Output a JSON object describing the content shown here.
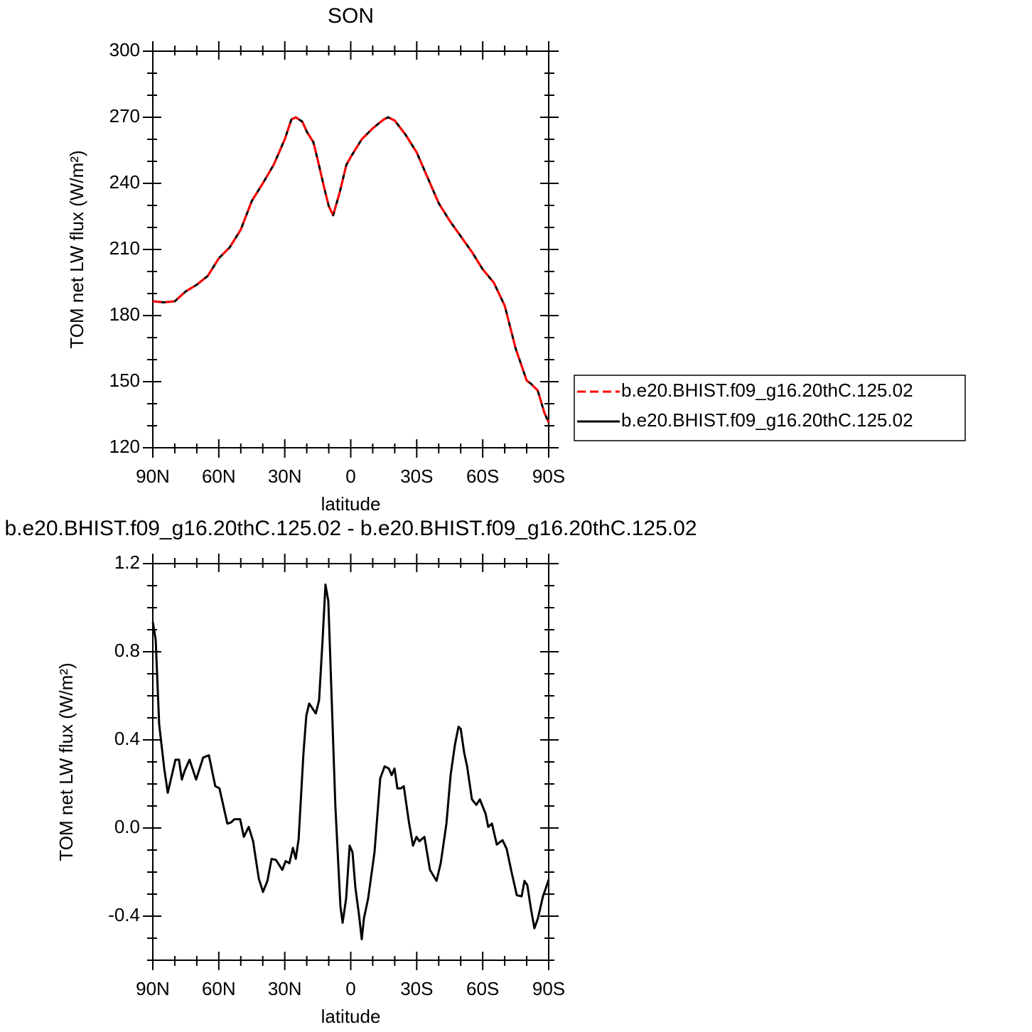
{
  "chart_data": [
    {
      "type": "line",
      "title": "SON",
      "xlabel": "latitude",
      "ylabel": "TOM net LW flux (W/m²)",
      "x": [
        90,
        85,
        80,
        75,
        70,
        65,
        60,
        55,
        50,
        45,
        40,
        35,
        30,
        27,
        25,
        22,
        20,
        17,
        15,
        12,
        10,
        8,
        5,
        2,
        0,
        -5,
        -10,
        -15,
        -17,
        -20,
        -25,
        -30,
        -35,
        -40,
        -45,
        -50,
        -55,
        -60,
        -65,
        -70,
        -75,
        -80,
        -82,
        -85,
        -88,
        -90
      ],
      "series": [
        {
          "name": "b.e20.BHIST.f09_g16.20thC.125.02",
          "color": "#ff0000",
          "dashed": true,
          "values": [
            186.5,
            186,
            186.5,
            191,
            194,
            198,
            206,
            211,
            219,
            232,
            240,
            248.5,
            260,
            269,
            270,
            268,
            263.5,
            258.7,
            250.6,
            237.7,
            229.7,
            225.5,
            236,
            248.4,
            252,
            260,
            265,
            269,
            270,
            268.5,
            262,
            254,
            242.5,
            231,
            223,
            216,
            209,
            201,
            195,
            184.5,
            165,
            150.5,
            149,
            146,
            136,
            131.5
          ]
        },
        {
          "name": "b.e20.BHIST.f09_g16.20thC.125.02",
          "color": "#000000",
          "dashed": false,
          "values": [
            186.5,
            186,
            186.5,
            191,
            194,
            198,
            206,
            211,
            219,
            232,
            240,
            248.5,
            260,
            269,
            270,
            268,
            263.5,
            258.7,
            250.6,
            237.7,
            229.7,
            225.5,
            236,
            248.4,
            252,
            260,
            265,
            269,
            270,
            268.5,
            262,
            254,
            242.5,
            231,
            223,
            216,
            209,
            201,
            195,
            184.5,
            165,
            150.5,
            149,
            146,
            136,
            131.5
          ]
        }
      ],
      "xlim": [
        90,
        -90
      ],
      "xticks": [
        {
          "value": 90,
          "label": "90N"
        },
        {
          "value": 60,
          "label": "60N"
        },
        {
          "value": 30,
          "label": "30N"
        },
        0,
        {
          "value": -30,
          "label": "30S"
        },
        {
          "value": -60,
          "label": "60S"
        },
        {
          "value": -90,
          "label": "90S"
        }
      ],
      "ylim": [
        120,
        300
      ],
      "yticks": [
        120,
        150,
        180,
        210,
        240,
        270,
        300
      ],
      "legend": "right"
    },
    {
      "type": "line",
      "title": "b.e20.BHIST.f09_g16.20thC.125.02 - b.e20.BHIST.f09_g16.20thC.125.02",
      "xlabel": "latitude",
      "ylabel": "TOM net LW flux (W/m²)",
      "x": [
        90,
        88.7,
        87.1,
        84.8,
        83.2,
        79.7,
        78.1,
        76.8,
        75.5,
        73.3,
        70.3,
        67.1,
        64.5,
        61.6,
        59.7,
        56.1,
        54.5,
        52.9,
        50.3,
        48.6,
        46.4,
        44.4,
        41.8,
        39.9,
        37.9,
        36.0,
        34.0,
        31.1,
        29.6,
        27.9,
        26.3,
        25.0,
        23.7,
        21.5,
        20.2,
        18.9,
        15.9,
        14.4,
        12.8,
        11.5,
        10.2,
        8.6,
        7.0,
        4.7,
        3.7,
        2.1,
        0.5,
        -0.8,
        -2.1,
        -3.7,
        -5.0,
        -6.0,
        -7.9,
        -10.8,
        -13.4,
        -15.4,
        -17.3,
        -18.6,
        -19.9,
        -21.2,
        -22.8,
        -24.1,
        -26.4,
        -28.3,
        -29.9,
        -31.2,
        -33.5,
        -36.0,
        -39.0,
        -40.9,
        -43.5,
        -45.4,
        -47.4,
        -49.0,
        -50.0,
        -51.6,
        -52.9,
        -55.1,
        -57.1,
        -58.7,
        -61.3,
        -62.5,
        -64.2,
        -66.4,
        -69.0,
        -70.9,
        -72.9,
        -75.5,
        -77.7,
        -79.0,
        -80.3,
        -81.9,
        -83.5,
        -85.1,
        -87.4,
        -90
      ],
      "series": [
        {
          "color": "#000000",
          "dashed": false,
          "values": [
            0.935,
            0.855,
            0.47,
            0.27,
            0.16,
            0.31,
            0.31,
            0.22,
            0.26,
            0.31,
            0.22,
            0.32,
            0.33,
            0.19,
            0.18,
            0.02,
            0.025,
            0.04,
            0.04,
            -0.04,
            0.005,
            -0.06,
            -0.23,
            -0.29,
            -0.24,
            -0.14,
            -0.145,
            -0.19,
            -0.15,
            -0.16,
            -0.09,
            -0.14,
            -0.05,
            0.34,
            0.51,
            0.565,
            0.52,
            0.58,
            0.855,
            1.105,
            1.03,
            0.565,
            0.1,
            -0.355,
            -0.43,
            -0.32,
            -0.08,
            -0.11,
            -0.27,
            -0.39,
            -0.505,
            -0.41,
            -0.32,
            -0.11,
            0.225,
            0.28,
            0.27,
            0.24,
            0.27,
            0.18,
            0.18,
            0.19,
            0.03,
            -0.08,
            -0.04,
            -0.06,
            -0.04,
            -0.19,
            -0.24,
            -0.16,
            0.02,
            0.24,
            0.38,
            0.46,
            0.45,
            0.34,
            0.28,
            0.13,
            0.105,
            0.13,
            0.065,
            0.005,
            0.02,
            -0.075,
            -0.055,
            -0.095,
            -0.19,
            -0.305,
            -0.31,
            -0.24,
            -0.26,
            -0.365,
            -0.455,
            -0.41,
            -0.31,
            -0.235
          ]
        }
      ],
      "xlim": [
        90,
        -90
      ],
      "xticks": [
        {
          "value": 90,
          "label": "90N"
        },
        {
          "value": 60,
          "label": "60N"
        },
        {
          "value": 30,
          "label": "30N"
        },
        0,
        {
          "value": -30,
          "label": "30S"
        },
        {
          "value": -60,
          "label": "60S"
        },
        {
          "value": -90,
          "label": "90S"
        }
      ],
      "ylim": [
        -0.6,
        1.2
      ],
      "yticks": [
        -0.4,
        {
          "value": 0,
          "label": "0.0"
        },
        0.4,
        0.8,
        1.2
      ]
    }
  ]
}
